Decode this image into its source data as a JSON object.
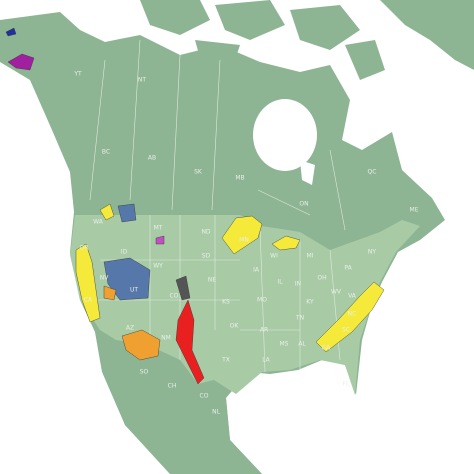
{
  "labels": [
    "YT",
    "NT",
    "BC",
    "AB",
    "SK",
    "MB",
    "ON",
    "QC",
    "WA",
    "OR",
    "CA",
    "NV",
    "ID",
    "MT",
    "WY",
    "UT",
    "AZ",
    "CO",
    "NM",
    "ND",
    "SD",
    "NE",
    "KS",
    "OK",
    "TX",
    "MN",
    "IA",
    "MO",
    "AR",
    "LA",
    "WI",
    "IL",
    "MI",
    "IN",
    "OH",
    "KY",
    "TN",
    "MS",
    "AL",
    "GA",
    "FL",
    "SC",
    "NC",
    "VA",
    "WV",
    "PA",
    "NY",
    "ME",
    "SO",
    "CH",
    "CO",
    "NL"
  ]
}
